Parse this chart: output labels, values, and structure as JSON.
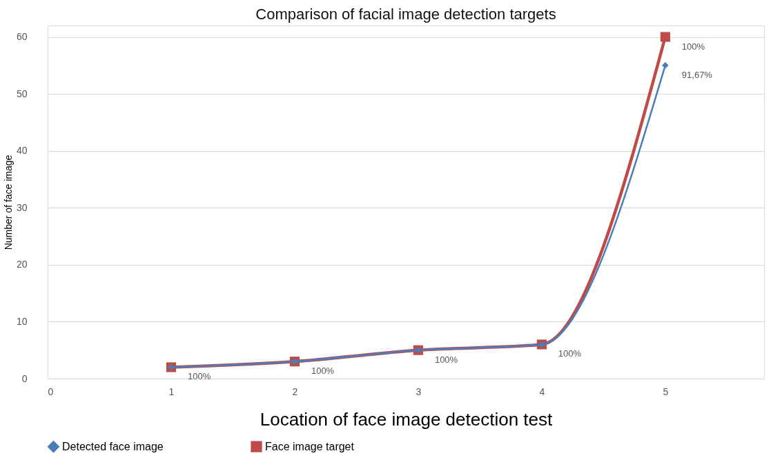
{
  "chart_data": {
    "type": "line",
    "title": "Comparison of facial image detection targets",
    "xlabel": "Location of face image detection test",
    "ylabel": "Number of face image",
    "x": [
      1,
      2,
      3,
      4,
      5
    ],
    "xlim": [
      0,
      5.8
    ],
    "xticks": [
      0,
      1,
      2,
      3,
      4,
      5
    ],
    "ylim": [
      0,
      62
    ],
    "yticks": [
      0,
      10,
      20,
      30,
      40,
      50,
      60
    ],
    "grid": "y",
    "legend": "bottom",
    "line_style": "solid",
    "series": [
      {
        "name": "Detected face image",
        "color": "#4a7ebb",
        "marker": "diamond",
        "values": [
          2,
          3,
          5,
          6,
          55
        ]
      },
      {
        "name": "Face image target",
        "color": "#be4b48",
        "marker": "square",
        "values": [
          2,
          3,
          5,
          6,
          60
        ]
      }
    ],
    "annotations": [
      {
        "text": "100%",
        "x": 1,
        "y": 2
      },
      {
        "text": "100%",
        "x": 2,
        "y": 3
      },
      {
        "text": "100%",
        "x": 3,
        "y": 5
      },
      {
        "text": "100%",
        "x": 4,
        "y": 6
      },
      {
        "text": "91,67%",
        "x": 5,
        "y": 55
      },
      {
        "text": "100%",
        "x": 5,
        "y": 60
      }
    ]
  }
}
